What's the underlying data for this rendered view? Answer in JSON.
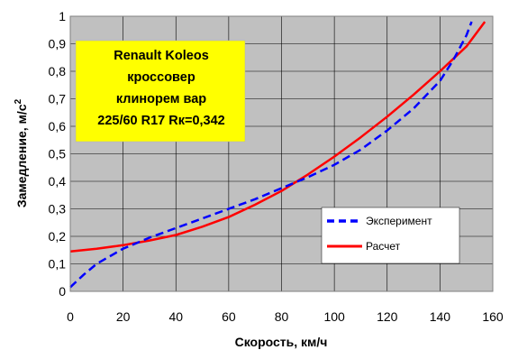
{
  "chart_data": {
    "type": "line",
    "xlabel": "Скорость, км/ч",
    "ylabel": "Замедление, м/с",
    "ylabel_sup": "2",
    "xlim": [
      0,
      160
    ],
    "ylim": [
      0,
      1
    ],
    "x_ticks": [
      0,
      20,
      40,
      60,
      80,
      100,
      120,
      140,
      160
    ],
    "y_ticks": [
      0,
      0.1,
      0.2,
      0.3,
      0.4,
      0.5,
      0.6,
      0.7,
      0.8,
      0.9,
      1
    ],
    "x_tick_labels": [
      "0",
      "20",
      "40",
      "60",
      "80",
      "100",
      "120",
      "140",
      "160"
    ],
    "y_tick_labels": [
      "0",
      "0,1",
      "0,2",
      "0,3",
      "0,4",
      "0,5",
      "0,6",
      "0,7",
      "0,8",
      "0,9",
      "1"
    ],
    "grid": true,
    "plot_background": "#c0c0c0",
    "annotation": {
      "lines": [
        "Renault Koleos",
        "кроссовер",
        "клинорем вар",
        "225/60 R17 Rк=0,342"
      ],
      "background": "#ffff00"
    },
    "legend_position": "bottom-right",
    "series": [
      {
        "name": "Эксперимент",
        "color": "#0000ff",
        "dash": "dashed",
        "x": [
          0,
          5,
          10,
          20,
          30,
          40,
          50,
          60,
          70,
          80,
          90,
          100,
          110,
          120,
          130,
          140,
          145,
          150,
          152
        ],
        "y": [
          0.015,
          0.06,
          0.1,
          0.155,
          0.195,
          0.23,
          0.265,
          0.3,
          0.335,
          0.375,
          0.415,
          0.46,
          0.515,
          0.585,
          0.665,
          0.765,
          0.84,
          0.93,
          0.98
        ]
      },
      {
        "name": "Расчет",
        "color": "#ff0000",
        "dash": "solid",
        "x": [
          0,
          10,
          20,
          30,
          40,
          50,
          60,
          70,
          80,
          90,
          100,
          110,
          120,
          130,
          140,
          150,
          157
        ],
        "y": [
          0.145,
          0.155,
          0.168,
          0.185,
          0.205,
          0.235,
          0.27,
          0.315,
          0.365,
          0.425,
          0.49,
          0.56,
          0.635,
          0.715,
          0.8,
          0.89,
          0.98
        ]
      }
    ]
  }
}
